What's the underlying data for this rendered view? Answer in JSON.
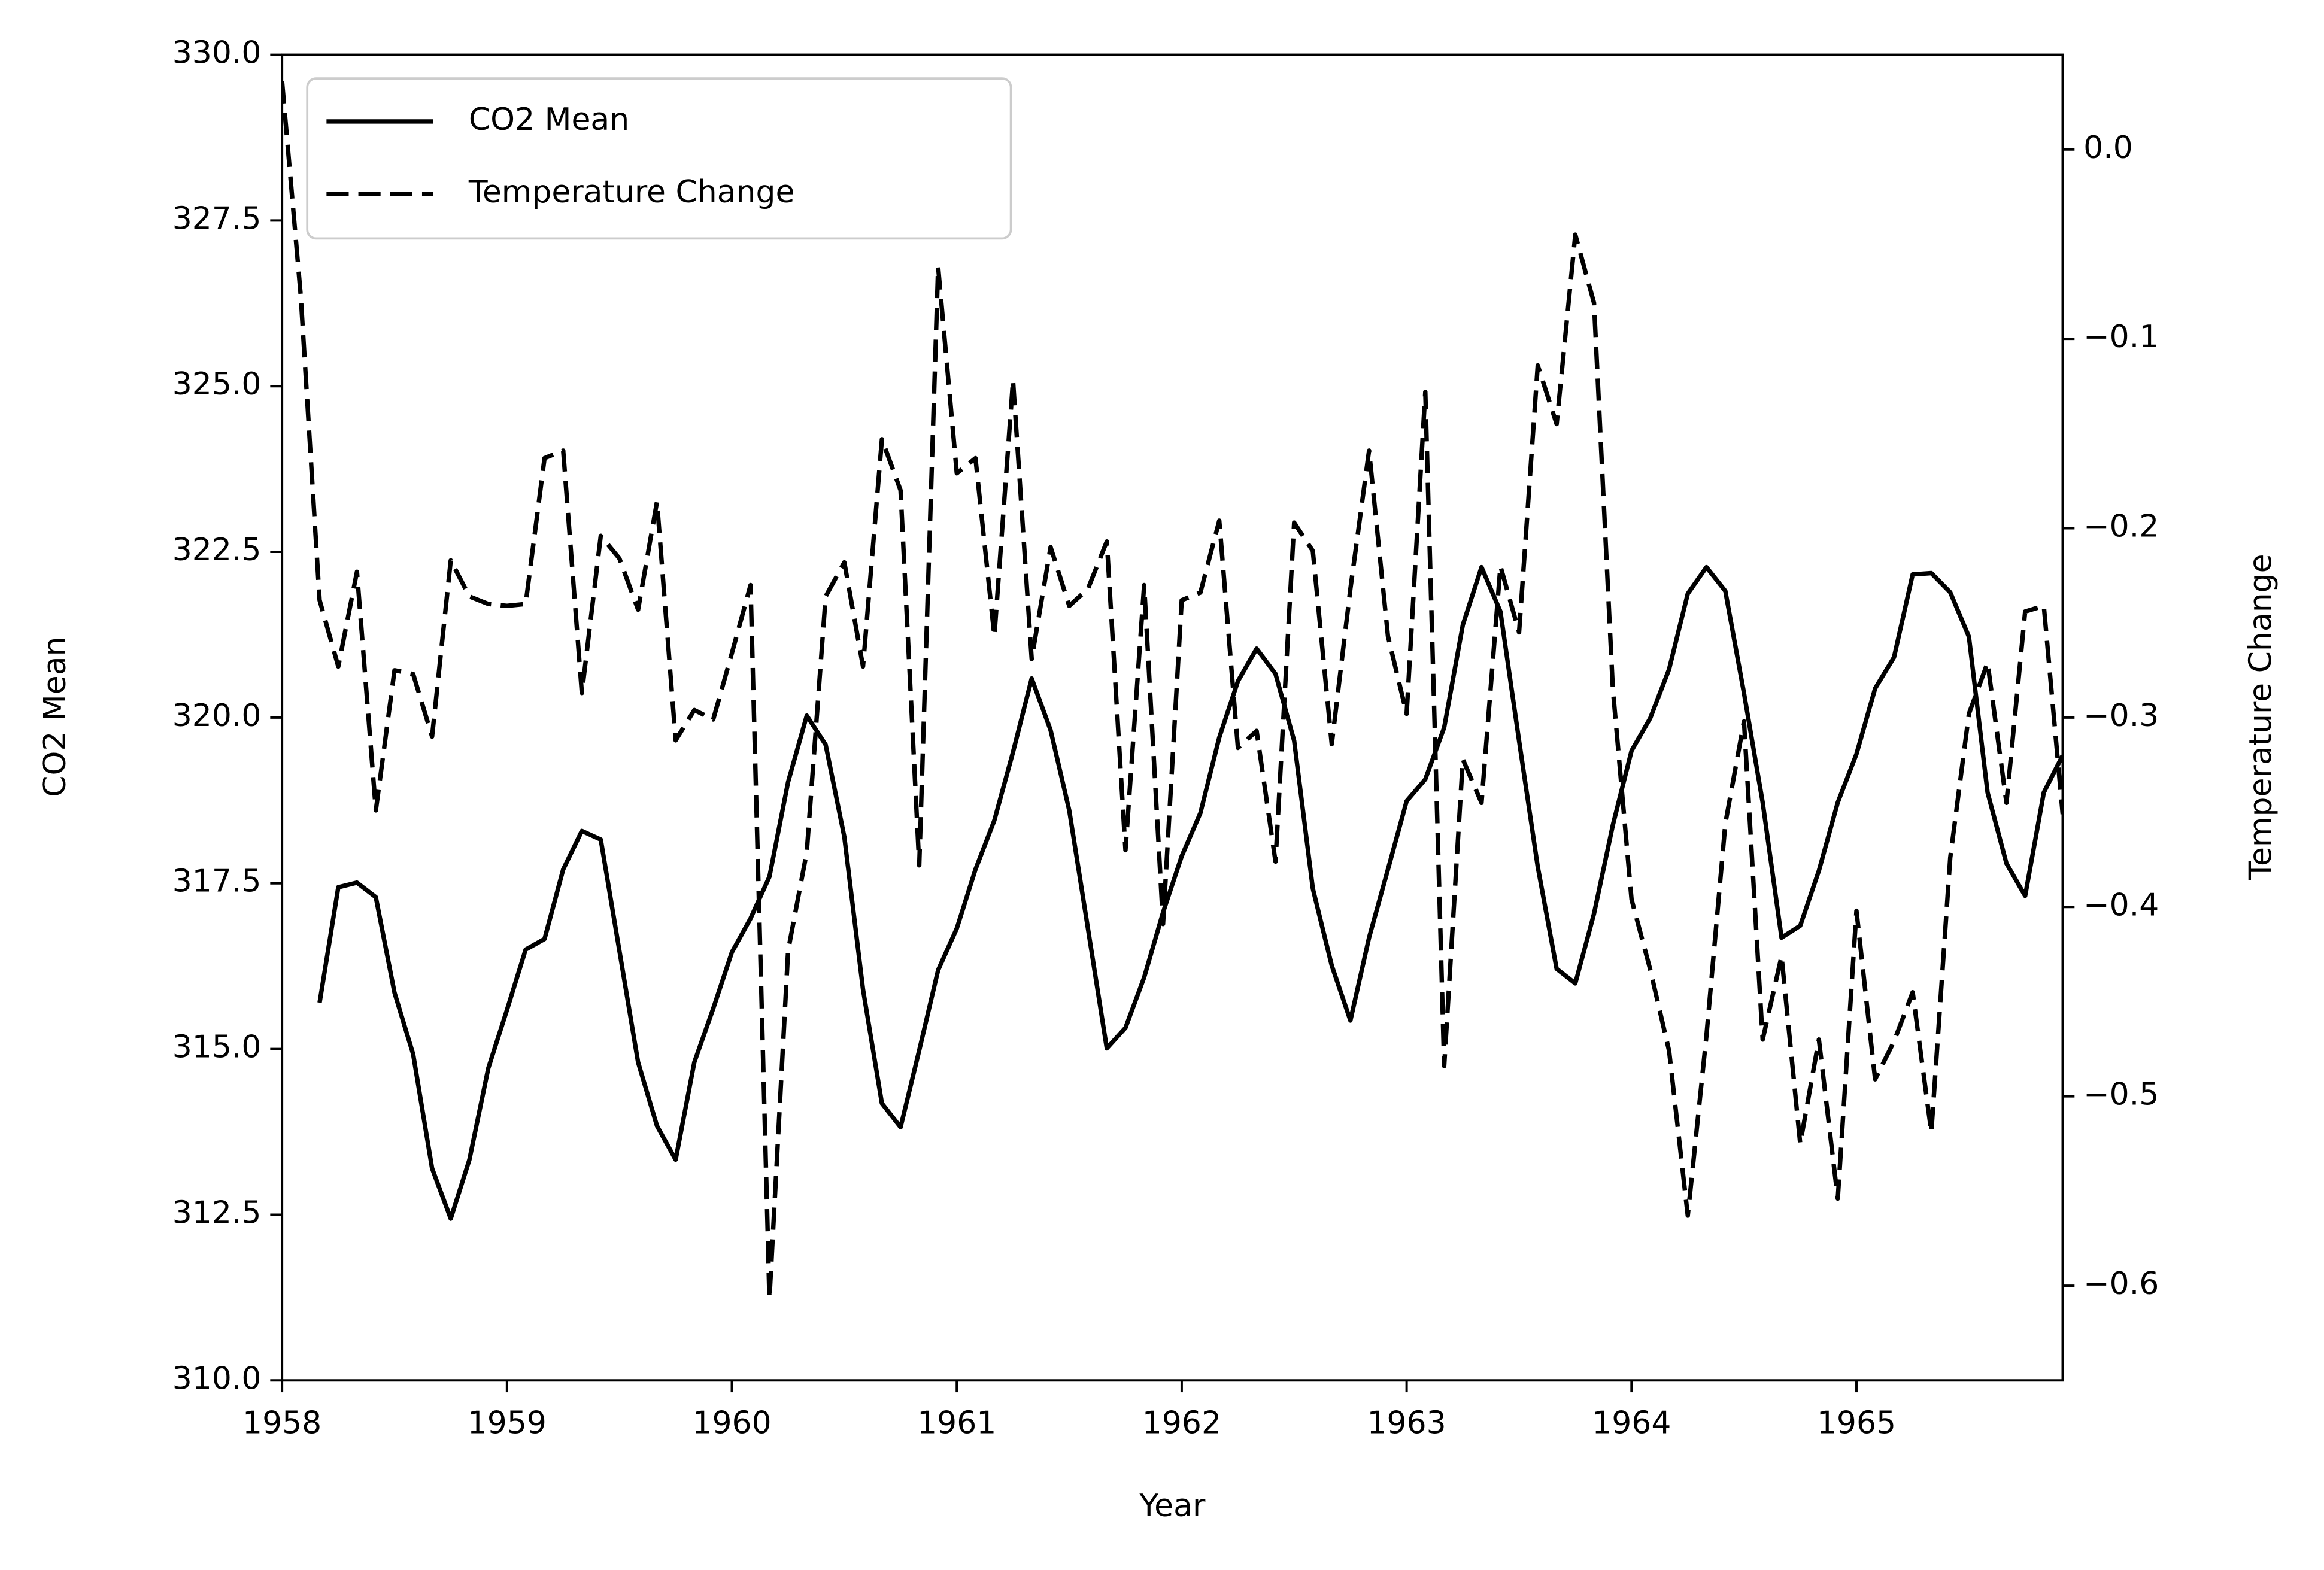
{
  "chart_data": {
    "type": "line",
    "x_label": "Year",
    "y_label": "CO2 Mean",
    "y2_label": "Temperature Change",
    "x": [
      1958.0,
      1958.083,
      1958.167,
      1958.25,
      1958.333,
      1958.417,
      1958.5,
      1958.583,
      1958.667,
      1958.75,
      1958.833,
      1958.917,
      1959.0,
      1959.083,
      1959.167,
      1959.25,
      1959.333,
      1959.417,
      1959.5,
      1959.583,
      1959.667,
      1959.75,
      1959.833,
      1959.917,
      1960.0,
      1960.083,
      1960.167,
      1960.25,
      1960.333,
      1960.417,
      1960.5,
      1960.583,
      1960.667,
      1960.75,
      1960.833,
      1960.917,
      1961.0,
      1961.083,
      1961.167,
      1961.25,
      1961.333,
      1961.417,
      1961.5,
      1961.583,
      1961.667,
      1961.75,
      1961.833,
      1961.917,
      1962.0,
      1962.083,
      1962.167,
      1962.25,
      1962.333,
      1962.417,
      1962.5,
      1962.583,
      1962.667,
      1962.75,
      1962.833,
      1962.917,
      1963.0,
      1963.083,
      1963.167,
      1963.25,
      1963.333,
      1963.417,
      1963.5,
      1963.583,
      1963.667,
      1963.75,
      1963.833,
      1963.917,
      1964.0,
      1964.083,
      1964.167,
      1964.25,
      1964.333,
      1964.417,
      1964.5,
      1964.583,
      1964.667,
      1964.75,
      1964.833,
      1964.917,
      1965.0,
      1965.083,
      1965.167,
      1965.25,
      1965.333,
      1965.417,
      1965.5,
      1965.583,
      1965.667,
      1965.75,
      1965.833,
      1965.917
    ],
    "series": [
      {
        "name": "CO2 Mean",
        "color": "#000000",
        "linestyle": "solid",
        "axis": "y",
        "values": [
          null,
          null,
          315.7,
          317.44,
          317.51,
          317.29,
          315.85,
          314.92,
          313.2,
          312.44,
          313.33,
          314.71,
          315.59,
          316.5,
          316.66,
          317.71,
          318.29,
          318.16,
          316.48,
          314.8,
          313.84,
          313.33,
          314.8,
          315.61,
          316.46,
          316.97,
          317.6,
          319.03,
          320.03,
          319.59,
          318.2,
          315.9,
          314.18,
          313.82,
          314.98,
          316.19,
          316.82,
          317.71,
          318.45,
          319.48,
          320.59,
          319.81,
          318.6,
          316.82,
          315.01,
          315.32,
          316.08,
          317.06,
          317.91,
          318.56,
          319.7,
          320.55,
          321.04,
          320.66,
          319.65,
          317.42,
          316.26,
          315.43,
          316.68,
          317.71,
          318.74,
          319.07,
          319.85,
          321.4,
          322.27,
          321.6,
          319.65,
          317.75,
          316.21,
          315.99,
          317.04,
          318.38,
          319.5,
          319.99,
          320.73,
          321.87,
          322.27,
          321.91,
          320.37,
          318.72,
          316.68,
          316.86,
          317.69,
          318.72,
          319.45,
          320.44,
          320.91,
          322.16,
          322.18,
          321.89,
          321.22,
          318.87,
          317.8,
          317.31,
          318.87,
          319.43
        ]
      },
      {
        "name": "Temperature Change",
        "color": "#000000",
        "linestyle": "dashed",
        "axis": "y2",
        "values": [
          0.036,
          -0.077,
          -0.238,
          -0.273,
          -0.223,
          -0.349,
          -0.275,
          -0.277,
          -0.31,
          -0.217,
          -0.236,
          -0.24,
          -0.241,
          -0.24,
          -0.163,
          -0.159,
          -0.287,
          -0.204,
          -0.216,
          -0.243,
          -0.186,
          -0.312,
          -0.296,
          -0.301,
          -0.266,
          -0.23,
          -0.607,
          -0.423,
          -0.371,
          -0.236,
          -0.218,
          -0.273,
          -0.153,
          -0.18,
          -0.378,
          -0.062,
          -0.171,
          -0.163,
          -0.257,
          -0.122,
          -0.269,
          -0.21,
          -0.241,
          -0.232,
          -0.207,
          -0.37,
          -0.23,
          -0.409,
          -0.238,
          -0.234,
          -0.196,
          -0.316,
          -0.307,
          -0.376,
          -0.197,
          -0.212,
          -0.314,
          -0.232,
          -0.159,
          -0.257,
          -0.298,
          -0.128,
          -0.484,
          -0.322,
          -0.345,
          -0.22,
          -0.255,
          -0.114,
          -0.145,
          -0.045,
          -0.081,
          -0.285,
          -0.396,
          -0.433,
          -0.476,
          -0.563,
          -0.468,
          -0.356,
          -0.302,
          -0.47,
          -0.426,
          -0.525,
          -0.47,
          -0.554,
          -0.402,
          -0.491,
          -0.471,
          -0.445,
          -0.519,
          -0.374,
          -0.298,
          -0.271,
          -0.345,
          -0.244,
          -0.241,
          -0.351
        ]
      }
    ],
    "xlim": [
      1958,
      1965.917
    ],
    "xticks": [
      1958,
      1959,
      1960,
      1961,
      1962,
      1963,
      1964,
      1965
    ],
    "ylim": [
      310,
      330
    ],
    "yticks": [
      {
        "value": 310,
        "label": "310.0"
      },
      {
        "value": 312.5,
        "label": "312.5"
      },
      {
        "value": 315,
        "label": "315.0"
      },
      {
        "value": 317.5,
        "label": "317.5"
      },
      {
        "value": 320,
        "label": "320.0"
      },
      {
        "value": 322.5,
        "label": "322.5"
      },
      {
        "value": 325,
        "label": "325.0"
      },
      {
        "value": 327.5,
        "label": "327.5"
      },
      {
        "value": 330,
        "label": "330.0"
      }
    ],
    "y2lim": [
      -0.65,
      0.05
    ],
    "y2ticks": [
      {
        "value": -0.6,
        "label": "−0.6"
      },
      {
        "value": -0.5,
        "label": "−0.5"
      },
      {
        "value": -0.4,
        "label": "−0.4"
      },
      {
        "value": -0.3,
        "label": "−0.3"
      },
      {
        "value": -0.2,
        "label": "−0.2"
      },
      {
        "value": -0.1,
        "label": "−0.1"
      },
      {
        "value": 0,
        "label": "0.0"
      }
    ],
    "grid": false,
    "legend": "upper left"
  }
}
